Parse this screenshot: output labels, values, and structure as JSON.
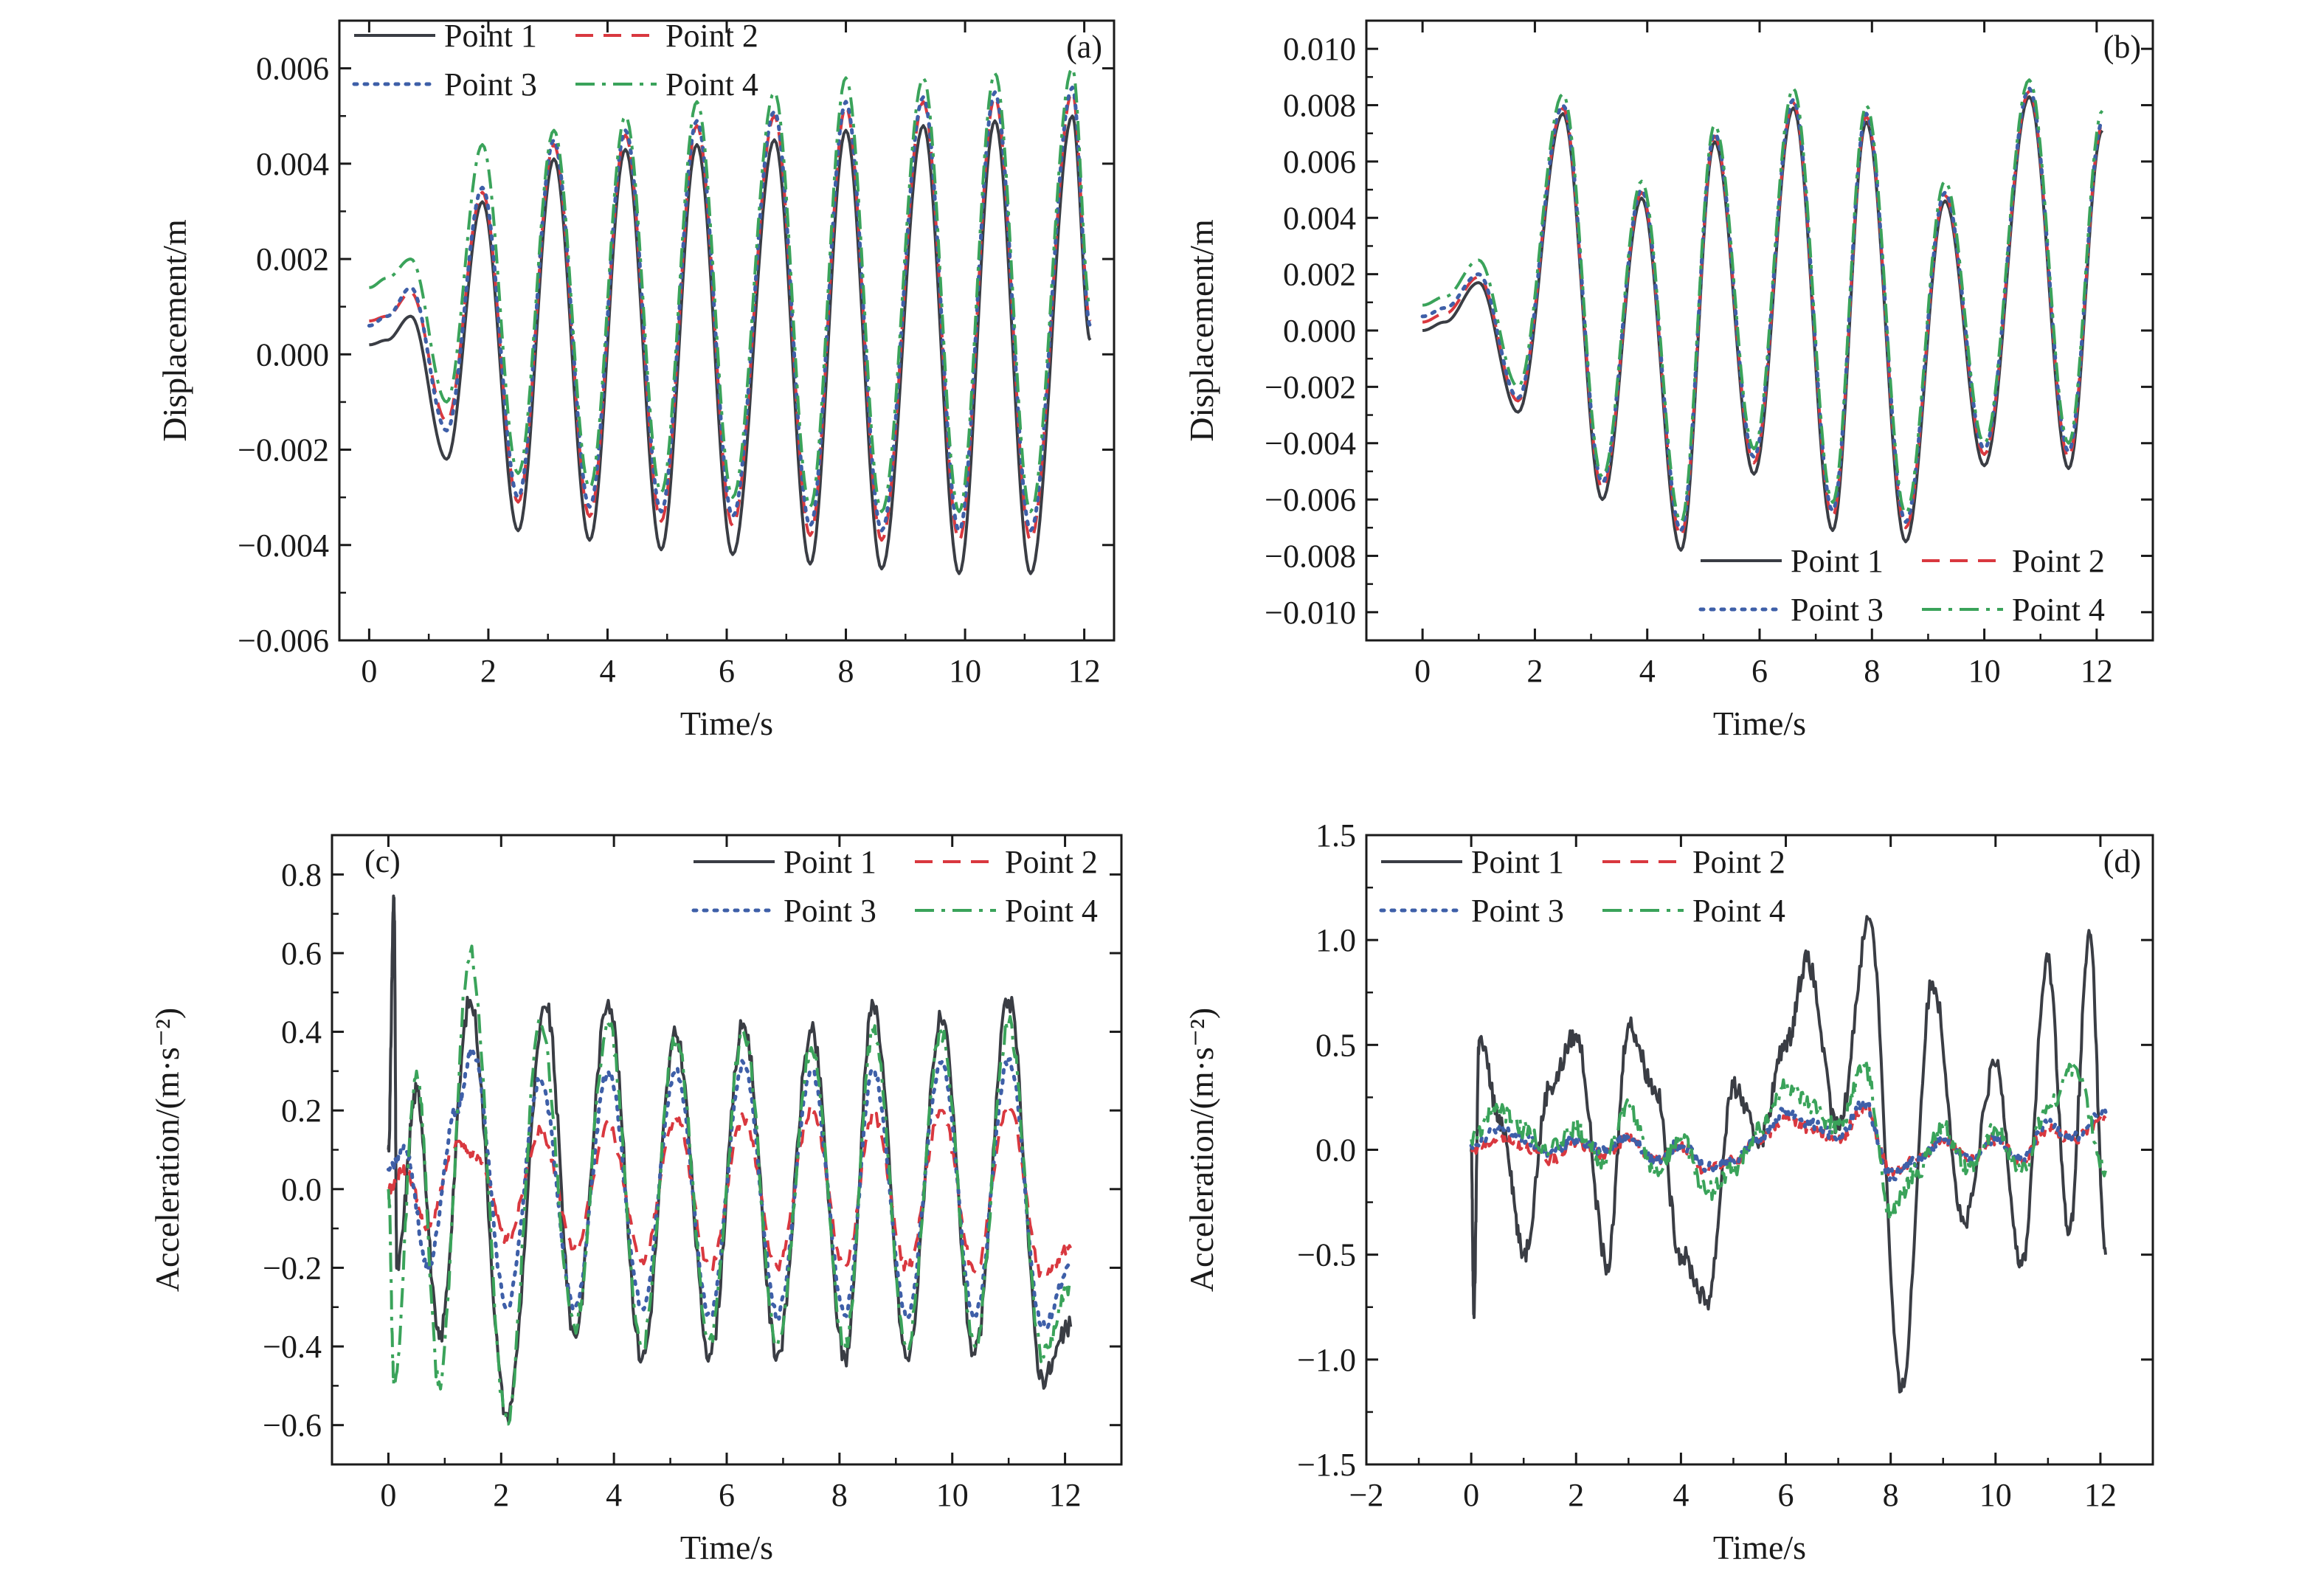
{
  "series_style": [
    {
      "name": "Point 1",
      "color": "#3a3d44",
      "dash": "solid"
    },
    {
      "name": "Point 2",
      "color": "#d9383f",
      "dash": "dashed"
    },
    {
      "name": "Point 3",
      "color": "#3e5fa8",
      "dash": "dotted"
    },
    {
      "name": "Point 4",
      "color": "#3aa35a",
      "dash": "dashdot"
    }
  ],
  "chart_data": [
    {
      "panel": "(a)",
      "type": "line",
      "xlabel": "Time/s",
      "ylabel": "Displacement/m",
      "xlim": [
        -0.5,
        12.5
      ],
      "ylim": [
        -0.006,
        0.007
      ],
      "xticks": [
        0,
        2,
        4,
        6,
        8,
        10,
        12
      ],
      "yticks": [
        -0.006,
        -0.004,
        -0.002,
        0.0,
        0.002,
        0.004,
        0.006
      ],
      "ytick_labels": [
        "−0.006",
        "−0.004",
        "−0.002",
        "0.000",
        "0.002",
        "0.004",
        "0.006"
      ],
      "xtick_labels": [
        "0",
        "2",
        "4",
        "6",
        "8",
        "10",
        "12"
      ],
      "legend_position": "top-left",
      "grid": false,
      "series": [
        {
          "name": "Point 1",
          "x": [
            0,
            0.3,
            0.7,
            1.3,
            1.9,
            2.5,
            3.1,
            3.7,
            4.3,
            4.9,
            5.5,
            6.1,
            6.8,
            7.4,
            8.0,
            8.6,
            9.3,
            9.9,
            10.5,
            11.1,
            11.8,
            12.1
          ],
          "y": [
            0.0002,
            0.0003,
            0.0008,
            -0.0022,
            0.0032,
            -0.0037,
            0.0041,
            -0.0039,
            0.0043,
            -0.0041,
            0.0044,
            -0.0042,
            0.0045,
            -0.0044,
            0.0047,
            -0.0045,
            0.0048,
            -0.0046,
            0.0049,
            -0.0046,
            0.005,
            0.0003
          ]
        },
        {
          "name": "Point 2",
          "x": [
            0,
            0.3,
            0.7,
            1.3,
            1.9,
            2.5,
            3.1,
            3.7,
            4.3,
            4.9,
            5.5,
            6.1,
            6.8,
            7.4,
            8.0,
            8.6,
            9.3,
            9.9,
            10.5,
            11.1,
            11.8,
            12.1
          ],
          "y": [
            0.0007,
            0.0008,
            0.0013,
            -0.0014,
            0.0034,
            -0.0031,
            0.0044,
            -0.0034,
            0.0046,
            -0.0035,
            0.0048,
            -0.0036,
            0.005,
            -0.0038,
            0.0052,
            -0.0039,
            0.0053,
            -0.0039,
            0.0054,
            -0.0039,
            0.0055,
            0.0007
          ]
        },
        {
          "name": "Point 3",
          "x": [
            0,
            0.3,
            0.7,
            1.3,
            1.9,
            2.5,
            3.1,
            3.7,
            4.3,
            4.9,
            5.5,
            6.1,
            6.8,
            7.4,
            8.0,
            8.6,
            9.3,
            9.9,
            10.5,
            11.1,
            11.8,
            12.1
          ],
          "y": [
            0.0006,
            0.0008,
            0.0014,
            -0.0016,
            0.0035,
            -0.003,
            0.0045,
            -0.0032,
            0.0047,
            -0.0033,
            0.0049,
            -0.0034,
            0.0051,
            -0.0036,
            0.0053,
            -0.0037,
            0.0054,
            -0.0037,
            0.0055,
            -0.0037,
            0.0056,
            0.0006
          ]
        },
        {
          "name": "Point 4",
          "x": [
            0,
            0.3,
            0.7,
            1.3,
            1.9,
            2.5,
            3.1,
            3.7,
            4.3,
            4.9,
            5.5,
            6.1,
            6.8,
            7.4,
            8.0,
            8.6,
            9.3,
            9.9,
            10.5,
            11.1,
            11.8,
            12.1
          ],
          "y": [
            0.0014,
            0.0016,
            0.002,
            -0.001,
            0.0044,
            -0.0025,
            0.0047,
            -0.0028,
            0.005,
            -0.0029,
            0.0053,
            -0.003,
            0.0055,
            -0.0032,
            0.0058,
            -0.0033,
            0.0058,
            -0.0033,
            0.0059,
            -0.0033,
            0.006,
            0.001
          ]
        }
      ]
    },
    {
      "panel": "(b)",
      "type": "line",
      "xlabel": "Time/s",
      "ylabel": "Displacement/m",
      "xlim": [
        -1,
        13
      ],
      "ylim": [
        -0.011,
        0.011
      ],
      "xticks": [
        0,
        2,
        4,
        6,
        8,
        10,
        12
      ],
      "yticks": [
        -0.01,
        -0.008,
        -0.006,
        -0.004,
        -0.002,
        0.0,
        0.002,
        0.004,
        0.006,
        0.008,
        0.01
      ],
      "ytick_labels": [
        "−0.010",
        "−0.008",
        "−0.006",
        "−0.004",
        "−0.002",
        "0.000",
        "0.002",
        "0.004",
        "0.006",
        "0.008",
        "0.010"
      ],
      "xtick_labels": [
        "0",
        "2",
        "4",
        "6",
        "8",
        "10",
        "12"
      ],
      "legend_position": "bottom-right",
      "grid": false,
      "series": [
        {
          "name": "Point 1",
          "x": [
            0,
            0.4,
            1.0,
            1.7,
            2.5,
            3.2,
            3.9,
            4.6,
            5.2,
            5.9,
            6.6,
            7.3,
            7.9,
            8.6,
            9.3,
            10.0,
            10.8,
            11.5,
            12.1
          ],
          "y": [
            0.0,
            0.0003,
            0.0017,
            -0.0029,
            0.0077,
            -0.006,
            0.0047,
            -0.0078,
            0.0067,
            -0.0051,
            0.0079,
            -0.0071,
            0.0074,
            -0.0075,
            0.0046,
            -0.0048,
            0.0083,
            -0.0049,
            0.0071
          ]
        },
        {
          "name": "Point 2",
          "x": [
            0,
            0.4,
            1.0,
            1.7,
            2.5,
            3.2,
            3.9,
            4.6,
            5.2,
            5.9,
            6.6,
            7.3,
            7.9,
            8.6,
            9.3,
            10.0,
            10.8,
            11.5,
            12.1
          ],
          "y": [
            0.0003,
            0.0006,
            0.0019,
            -0.0025,
            0.0079,
            -0.0056,
            0.0049,
            -0.0073,
            0.0069,
            -0.0047,
            0.0081,
            -0.0066,
            0.0076,
            -0.007,
            0.0048,
            -0.0044,
            0.0085,
            -0.0045,
            0.0073
          ]
        },
        {
          "name": "Point 3",
          "x": [
            0,
            0.4,
            1.0,
            1.7,
            2.5,
            3.2,
            3.9,
            4.6,
            5.2,
            5.9,
            6.6,
            7.3,
            7.9,
            8.6,
            9.3,
            10.0,
            10.8,
            11.5,
            12.1
          ],
          "y": [
            0.0005,
            0.0008,
            0.002,
            -0.0024,
            0.008,
            -0.0054,
            0.005,
            -0.0071,
            0.007,
            -0.0045,
            0.0082,
            -0.0064,
            0.0077,
            -0.0068,
            0.0049,
            -0.0042,
            0.0086,
            -0.0043,
            0.0074
          ]
        },
        {
          "name": "Point 4",
          "x": [
            0,
            0.4,
            1.0,
            1.7,
            2.5,
            3.2,
            3.9,
            4.6,
            5.2,
            5.9,
            6.6,
            7.3,
            7.9,
            8.6,
            9.3,
            10.0,
            10.8,
            11.5,
            12.1
          ],
          "y": [
            0.0009,
            0.0012,
            0.0025,
            -0.002,
            0.0084,
            -0.0052,
            0.0053,
            -0.0068,
            0.0073,
            -0.0042,
            0.0086,
            -0.0061,
            0.008,
            -0.0065,
            0.0053,
            -0.004,
            0.0089,
            -0.004,
            0.0078
          ]
        }
      ]
    },
    {
      "panel": "(c)",
      "type": "line",
      "xlabel": "Time/s",
      "ylabel": "Acceleration/(m·s⁻²)",
      "xlim": [
        -1,
        13
      ],
      "ylim": [
        -0.7,
        0.9
      ],
      "xticks": [
        0,
        2,
        4,
        6,
        8,
        10,
        12
      ],
      "yticks": [
        -0.6,
        -0.4,
        -0.2,
        0.0,
        0.2,
        0.4,
        0.6,
        0.8
      ],
      "ytick_labels": [
        "−0.6",
        "−0.4",
        "−0.2",
        "0.0",
        "0.2",
        "0.4",
        "0.6",
        "0.8"
      ],
      "xtick_labels": [
        "0",
        "2",
        "4",
        "6",
        "8",
        "10",
        "12"
      ],
      "legend_position": "top-right",
      "grid": false,
      "series": [
        {
          "name": "Point 1",
          "x": [
            0,
            0.1,
            0.15,
            0.5,
            0.9,
            1.45,
            2.1,
            2.8,
            3.3,
            3.9,
            4.5,
            5.1,
            5.7,
            6.3,
            6.9,
            7.5,
            8.1,
            8.6,
            9.2,
            9.8,
            10.4,
            11.0,
            11.6,
            12.1
          ],
          "y": [
            0.1,
            0.74,
            -0.2,
            0.25,
            -0.38,
            0.48,
            -0.57,
            0.46,
            -0.37,
            0.48,
            -0.43,
            0.39,
            -0.42,
            0.42,
            -0.42,
            0.4,
            -0.43,
            0.47,
            -0.43,
            0.43,
            -0.42,
            0.48,
            -0.48,
            -0.35
          ]
        },
        {
          "name": "Point 2",
          "x": [
            0,
            0.3,
            0.7,
            1.2,
            1.6,
            2.1,
            2.7,
            3.3,
            3.9,
            4.5,
            5.1,
            5.7,
            6.3,
            6.9,
            7.5,
            8.1,
            8.6,
            9.2,
            9.8,
            10.4,
            11.0,
            11.6,
            12.1
          ],
          "y": [
            0.0,
            0.05,
            -0.1,
            0.12,
            0.08,
            -0.13,
            0.15,
            -0.15,
            0.16,
            -0.18,
            0.18,
            -0.2,
            0.18,
            -0.2,
            0.2,
            -0.2,
            0.19,
            -0.2,
            0.2,
            -0.21,
            0.21,
            -0.22,
            -0.15
          ]
        },
        {
          "name": "Point 3",
          "x": [
            0,
            0.3,
            0.7,
            1.2,
            1.5,
            2.1,
            2.7,
            3.3,
            3.9,
            4.5,
            5.1,
            5.7,
            6.3,
            6.9,
            7.5,
            8.1,
            8.6,
            9.2,
            9.8,
            10.4,
            11.0,
            11.6,
            12.1
          ],
          "y": [
            0.05,
            0.1,
            -0.2,
            0.2,
            0.35,
            -0.3,
            0.28,
            -0.3,
            0.3,
            -0.3,
            0.3,
            -0.32,
            0.32,
            -0.32,
            0.3,
            -0.32,
            0.3,
            -0.32,
            0.32,
            -0.32,
            0.33,
            -0.35,
            -0.2
          ]
        },
        {
          "name": "Point 4",
          "x": [
            0,
            0.1,
            0.5,
            0.9,
            1.45,
            2.1,
            2.7,
            3.3,
            3.9,
            4.5,
            5.1,
            5.7,
            6.3,
            6.9,
            7.5,
            8.1,
            8.6,
            9.2,
            9.8,
            10.4,
            11.0,
            11.6,
            12.1
          ],
          "y": [
            0.0,
            -0.5,
            0.3,
            -0.49,
            0.6,
            -0.59,
            0.42,
            -0.35,
            0.42,
            -0.4,
            0.38,
            -0.38,
            0.4,
            -0.4,
            0.36,
            -0.4,
            0.4,
            -0.4,
            0.4,
            -0.4,
            0.42,
            -0.42,
            -0.25
          ]
        }
      ]
    },
    {
      "panel": "(d)",
      "type": "line",
      "xlabel": "Time/s",
      "ylabel": "Acceleration/(m·s⁻²)",
      "xlim": [
        -2,
        13
      ],
      "ylim": [
        -1.5,
        1.5
      ],
      "xticks": [
        -2,
        0,
        2,
        4,
        6,
        8,
        10,
        12
      ],
      "yticks": [
        -1.5,
        -1.0,
        -0.5,
        0.0,
        0.5,
        1.0,
        1.5
      ],
      "ytick_labels": [
        "−1.5",
        "−1.0",
        "−0.5",
        "0.0",
        "0.5",
        "1.0",
        "1.5"
      ],
      "xtick_labels": [
        "−2",
        "0",
        "2",
        "4",
        "6",
        "8",
        "10",
        "12"
      ],
      "legend_position": "top-left",
      "grid": false,
      "series": [
        {
          "name": "Point 1",
          "x": [
            0,
            0.05,
            0.15,
            0.6,
            1.0,
            1.5,
            2.0,
            2.6,
            3.0,
            3.5,
            4.0,
            4.5,
            5.0,
            5.5,
            6.0,
            6.4,
            7.0,
            7.6,
            8.2,
            8.8,
            9.4,
            10.0,
            10.5,
            11.0,
            11.4,
            11.8,
            12.1
          ],
          "y": [
            0.0,
            -0.77,
            0.52,
            0.1,
            -0.5,
            0.3,
            0.55,
            -0.55,
            0.6,
            0.3,
            -0.5,
            -0.72,
            0.3,
            0.05,
            0.5,
            0.9,
            0.1,
            1.1,
            -1.15,
            0.8,
            -0.35,
            0.4,
            -0.55,
            0.9,
            -0.4,
            1.02,
            -0.5
          ]
        },
        {
          "name": "Point 2",
          "x": [
            0,
            0.5,
            1.0,
            1.5,
            2.0,
            2.5,
            3.0,
            3.5,
            4.0,
            4.5,
            5.0,
            5.5,
            6.0,
            6.5,
            7.0,
            7.5,
            8.0,
            8.5,
            9.0,
            9.5,
            10.0,
            10.5,
            11.0,
            11.5,
            12.1
          ],
          "y": [
            0.0,
            0.05,
            0.02,
            -0.05,
            0.03,
            -0.02,
            0.05,
            -0.05,
            0.02,
            -0.1,
            -0.05,
            0.05,
            0.15,
            0.1,
            0.05,
            0.2,
            -0.1,
            -0.05,
            0.05,
            -0.05,
            0.05,
            -0.05,
            0.1,
            0.05,
            0.15
          ]
        },
        {
          "name": "Point 3",
          "x": [
            0,
            0.5,
            1.0,
            1.5,
            2.0,
            2.5,
            3.0,
            3.5,
            4.0,
            4.5,
            5.0,
            5.5,
            6.0,
            6.5,
            7.0,
            7.5,
            8.0,
            8.5,
            9.0,
            9.5,
            10.0,
            10.5,
            11.0,
            11.5,
            12.1
          ],
          "y": [
            0.02,
            0.1,
            0.05,
            -0.02,
            0.05,
            0.0,
            0.06,
            -0.05,
            0.03,
            -0.08,
            -0.05,
            0.06,
            0.18,
            0.12,
            0.06,
            0.22,
            -0.12,
            -0.05,
            0.05,
            -0.05,
            0.06,
            -0.05,
            0.12,
            0.06,
            0.18
          ]
        },
        {
          "name": "Point 4",
          "x": [
            0,
            0.5,
            1.0,
            1.5,
            2.0,
            2.5,
            3.0,
            3.5,
            4.0,
            4.5,
            5.0,
            5.5,
            6.0,
            6.5,
            7.0,
            7.5,
            8.0,
            8.5,
            9.0,
            9.5,
            10.0,
            10.5,
            11.0,
            11.5,
            12.1
          ],
          "y": [
            0.05,
            0.2,
            0.1,
            0.0,
            0.1,
            -0.05,
            0.2,
            -0.1,
            0.05,
            -0.2,
            -0.1,
            0.1,
            0.3,
            0.2,
            0.1,
            0.4,
            -0.3,
            -0.1,
            0.1,
            -0.1,
            0.1,
            -0.1,
            0.2,
            0.4,
            -0.1
          ]
        }
      ]
    }
  ]
}
